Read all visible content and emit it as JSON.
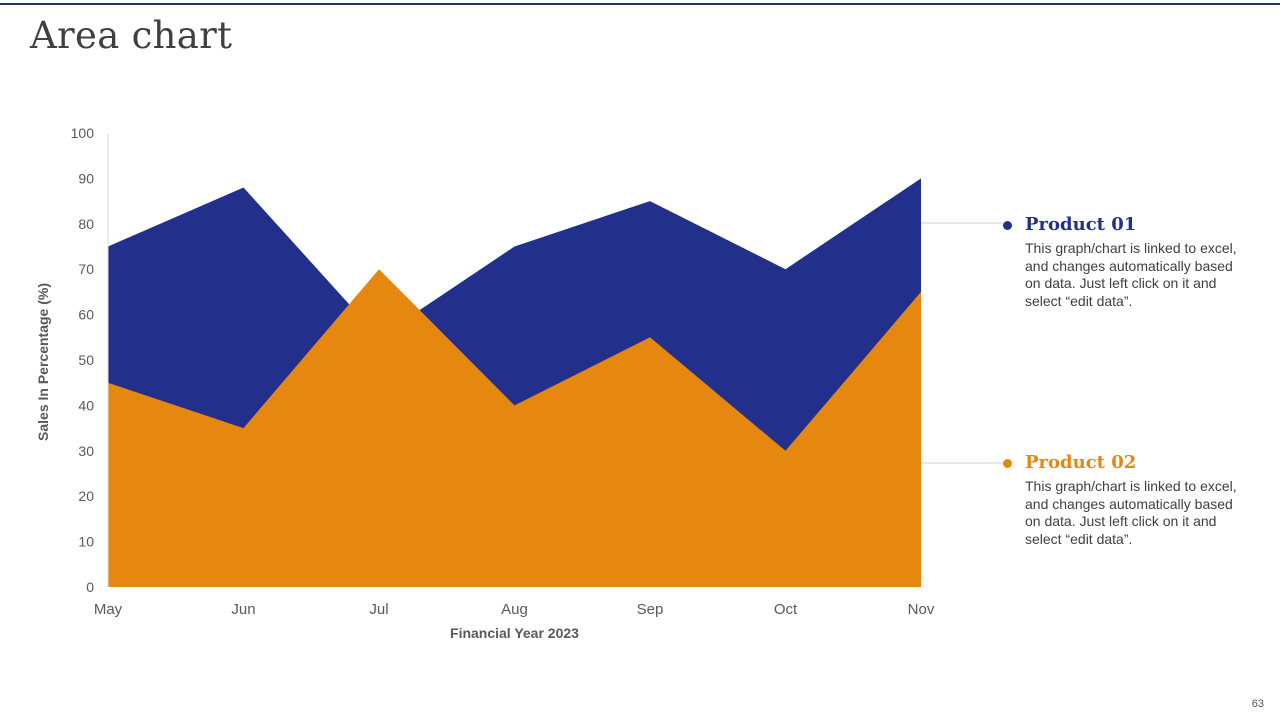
{
  "slide": {
    "title": "Area chart",
    "page_number": "63"
  },
  "chart_data": {
    "type": "area",
    "categories": [
      "May",
      "Jun",
      "Jul",
      "Aug",
      "Sep",
      "Oct",
      "Nov"
    ],
    "series": [
      {
        "name": "Product 01",
        "values": [
          75,
          88,
          55,
          75,
          85,
          70,
          90
        ],
        "color": "#22308c"
      },
      {
        "name": "Product 02",
        "values": [
          45,
          35,
          70,
          40,
          55,
          30,
          65
        ],
        "color": "#e6880f"
      }
    ],
    "xlabel": "Financial Year 2023",
    "ylabel": "Sales In Percentage (%)",
    "ylim": [
      0,
      100
    ],
    "yticks": [
      0,
      10,
      20,
      30,
      40,
      50,
      60,
      70,
      80,
      90,
      100
    ],
    "grid": false,
    "legend_position": "right"
  },
  "legend": [
    {
      "name": "Product 01",
      "color": "#22308c",
      "description": "This graph/chart is linked to excel, and changes automatically based on data. Just left click on it and select “edit data”."
    },
    {
      "name": "Product 02",
      "color": "#e6880f",
      "description": "This graph/chart is linked to excel, and changes automatically based on data. Just left click on it and select “edit data”."
    }
  ]
}
